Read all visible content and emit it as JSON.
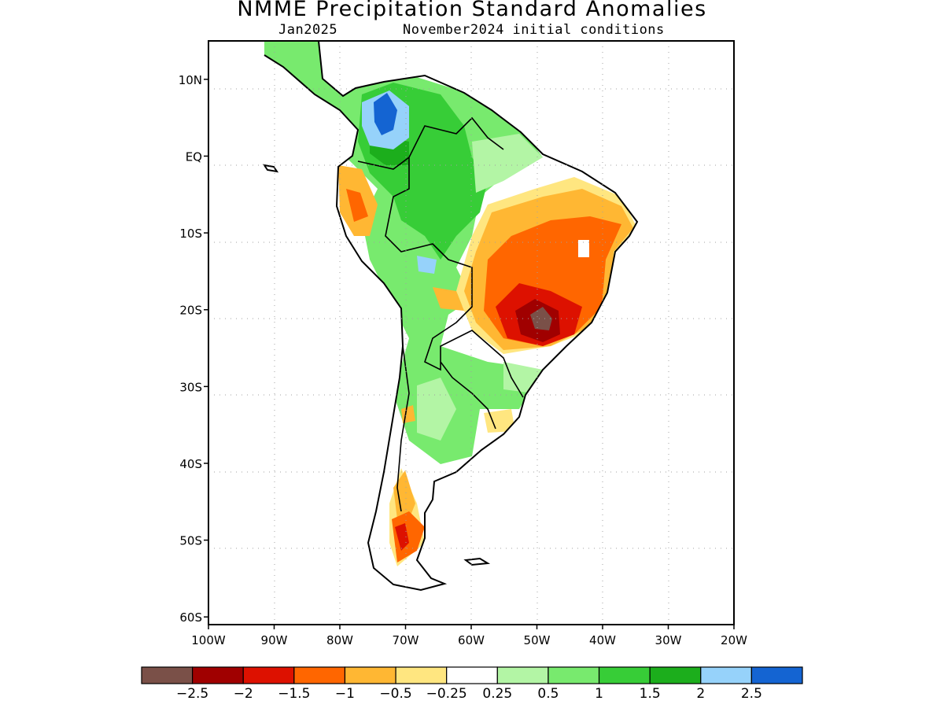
{
  "title": "NMME Precipitation Standard Anomalies",
  "subtitle_left": "Jan2025",
  "subtitle_right": "November2024 initial conditions",
  "lat_labels": [
    {
      "text": "10N",
      "lat": 10
    },
    {
      "text": "EQ",
      "lat": 0
    },
    {
      "text": "10S",
      "lat": -10
    },
    {
      "text": "20S",
      "lat": -20
    },
    {
      "text": "30S",
      "lat": -30
    },
    {
      "text": "40S",
      "lat": -40
    },
    {
      "text": "50S",
      "lat": -50
    },
    {
      "text": "60S",
      "lat": -60
    }
  ],
  "lon_labels": [
    {
      "text": "100W",
      "lon": -100
    },
    {
      "text": "90W",
      "lon": -90
    },
    {
      "text": "80W",
      "lon": -80
    },
    {
      "text": "70W",
      "lon": -70
    },
    {
      "text": "60W",
      "lon": -60
    },
    {
      "text": "50W",
      "lon": -50
    },
    {
      "text": "40W",
      "lon": -40
    },
    {
      "text": "30W",
      "lon": -30
    },
    {
      "text": "20W",
      "lon": -20
    }
  ],
  "colorbar": {
    "colors": [
      "#7a5048",
      "#a00000",
      "#dd1100",
      "#ff6600",
      "#ffb733",
      "#ffe680",
      "#ffffff",
      "#b3f5a5",
      "#78ea6e",
      "#37cd37",
      "#1cae1c",
      "#96d2fa",
      "#1464d2"
    ],
    "labels": [
      "−2.5",
      "−2",
      "−1.5",
      "−1",
      "−0.5",
      "−0.25",
      "0.25",
      "0.5",
      "1",
      "1.5",
      "2",
      "2.5"
    ]
  },
  "colors": {
    "green_light": "#b3f5a5",
    "green": "#78ea6e",
    "green_mid": "#37cd37",
    "green_dark": "#1cae1c",
    "blue_light": "#96d2fa",
    "blue": "#1464d2",
    "yellow": "#ffe680",
    "orange_light": "#ffb733",
    "orange": "#ff6600",
    "red": "#dd1100",
    "dark_red": "#a00000",
    "brown": "#7a5048"
  }
}
